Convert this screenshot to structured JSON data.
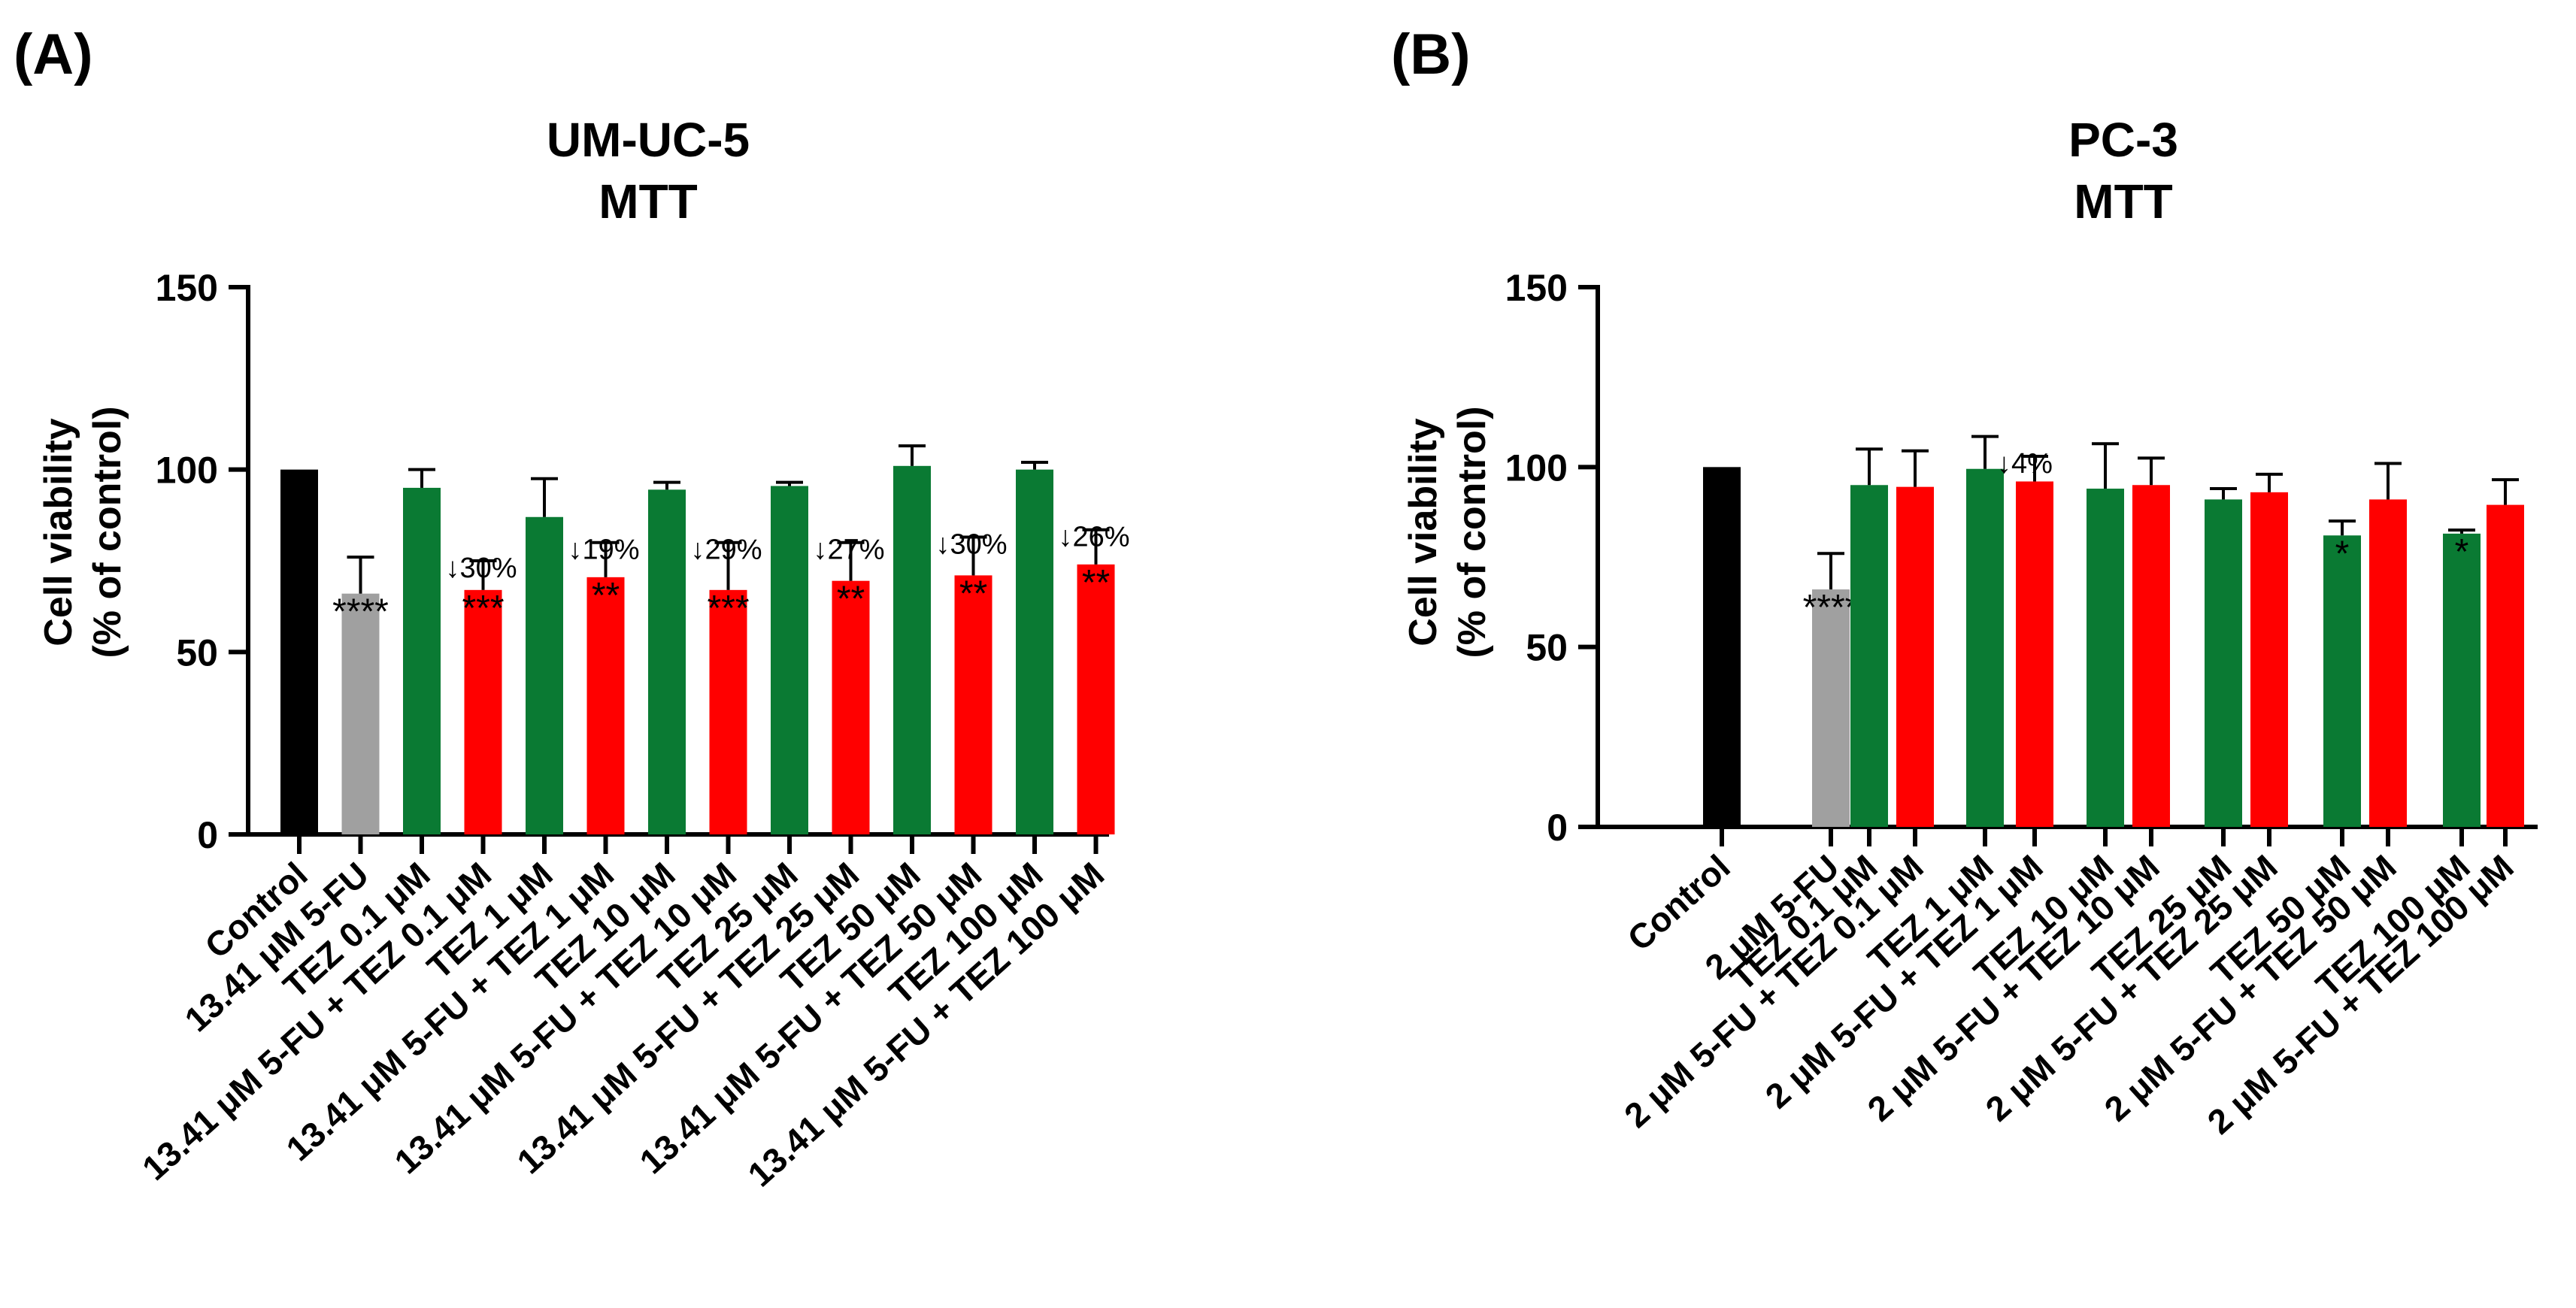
{
  "colors": {
    "black": "#000000",
    "gray": "#a0a0a0",
    "green": "#0a7a33",
    "red": "#ff0000"
  },
  "chart_data": [
    {
      "type": "bar",
      "panel": "(A)",
      "title": [
        "UM-UC-5",
        "MTT"
      ],
      "ylabel": [
        "Cell viability",
        "(% of control)"
      ],
      "ylim": [
        0,
        150
      ],
      "yticks": [
        0,
        50,
        100,
        150
      ],
      "categories": [
        "Control",
        "13.41 μM 5-FU",
        "TEZ 0.1 μM",
        "13.41 μM 5-FU + TEZ 0.1 μM",
        "TEZ 1 μM",
        "13.41 μM 5-FU + TEZ 1 μM",
        "TEZ 10 μM",
        "13.41 μM 5-FU + TEZ 10 μM",
        "TEZ 25 μM",
        "13.41 μM 5-FU + TEZ 25 μM",
        "TEZ 50 μM",
        "13.41 μM 5-FU + TEZ 50 μM",
        "TEZ 100 μM",
        "13.41 μM 5-FU + TEZ 100 μM"
      ],
      "values": [
        100,
        66,
        95,
        67,
        87,
        70.5,
        94.5,
        67,
        95.5,
        69.5,
        101,
        71,
        100,
        74
      ],
      "errors": [
        0,
        10,
        5,
        8,
        10.5,
        9.5,
        2,
        13,
        1,
        10.5,
        5.5,
        10.5,
        2,
        9.5
      ],
      "colors": [
        "black",
        "gray",
        "green",
        "red",
        "green",
        "red",
        "green",
        "red",
        "green",
        "red",
        "green",
        "red",
        "green",
        "red"
      ],
      "significance": [
        "",
        "****",
        "",
        "***",
        "",
        "**",
        "",
        "***",
        "",
        "**",
        "",
        "**",
        "",
        "**"
      ],
      "annotations": [
        "",
        "",
        "",
        "↓30%",
        "",
        "↓19%",
        "",
        "↓29%",
        "",
        "↓27%",
        "",
        "↓30%",
        "",
        "↓26%"
      ]
    },
    {
      "type": "bar",
      "panel": "(B)",
      "title": [
        "PC-3",
        "MTT"
      ],
      "ylabel": [
        "Cell viability",
        "(% of control)"
      ],
      "ylim": [
        0,
        150
      ],
      "yticks": [
        0,
        50,
        100,
        150
      ],
      "categories": [
        "Control",
        "2 μM 5-FU",
        "TEZ 0.1 μM",
        "2 μM 5-FU + TEZ 0.1 μM",
        "TEZ 1 μM",
        "2 μM 5-FU + TEZ 1 μM",
        "TEZ 10 μM",
        "2 μM 5-FU + TEZ 10 μM",
        "TEZ 25 μM",
        "2 μM 5-FU + TEZ 25 μM",
        "TEZ 50 μM",
        "2 μM 5-FU + TEZ 50 μM",
        "TEZ 100 μM",
        "2 μM 5-FU + TEZ 100 μM"
      ],
      "values": [
        100,
        66,
        95,
        94.5,
        99.5,
        96,
        94,
        95,
        91,
        93,
        81,
        91,
        81.5,
        89.5
      ],
      "errors": [
        0,
        10,
        10,
        10,
        9,
        7,
        12.5,
        7.5,
        3,
        5,
        4,
        10,
        1,
        7
      ],
      "colors": [
        "black",
        "gray",
        "green",
        "red",
        "green",
        "red",
        "green",
        "red",
        "green",
        "red",
        "green",
        "red",
        "green",
        "red"
      ],
      "significance": [
        "",
        "****",
        "",
        "",
        "",
        "",
        "",
        "",
        "",
        "",
        "*",
        "",
        "*",
        ""
      ],
      "annotations": [
        "",
        "",
        "",
        "",
        "",
        "↓4%",
        "",
        "",
        "",
        "",
        "",
        "",
        "",
        ""
      ]
    }
  ]
}
